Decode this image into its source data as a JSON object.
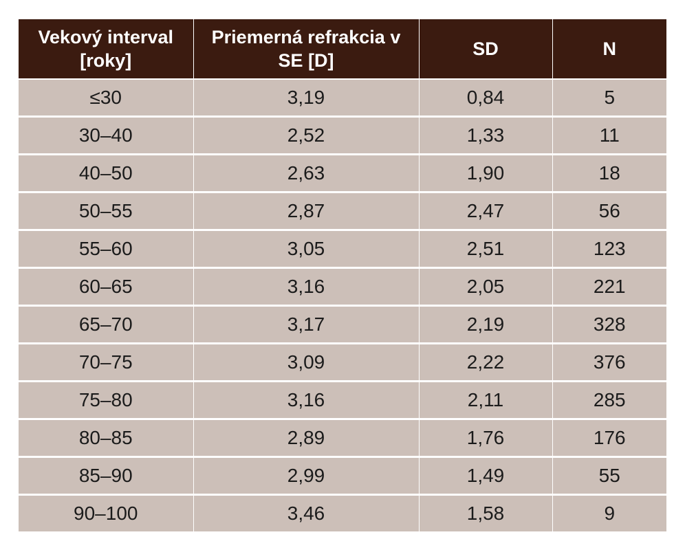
{
  "table": {
    "headers": [
      "Vekový interval [roky]",
      "Priemerná refrakcia v SE [D]",
      "SD",
      "N"
    ],
    "rows": [
      [
        "≤30",
        "3,19",
        "0,84",
        "5"
      ],
      [
        "30–40",
        "2,52",
        "1,33",
        "11"
      ],
      [
        "40–50",
        "2,63",
        "1,90",
        "18"
      ],
      [
        "50–55",
        "2,87",
        "2,47",
        "56"
      ],
      [
        "55–60",
        "3,05",
        "2,51",
        "123"
      ],
      [
        "60–65",
        "3,16",
        "2,05",
        "221"
      ],
      [
        "65–70",
        "3,17",
        "2,19",
        "328"
      ],
      [
        "70–75",
        "3,09",
        "2,22",
        "376"
      ],
      [
        "75–80",
        "3,16",
        "2,11",
        "285"
      ],
      [
        "80–85",
        "2,89",
        "1,76",
        "176"
      ],
      [
        "85–90",
        "2,99",
        "1,49",
        "55"
      ],
      [
        "90–100",
        "3,46",
        "1,58",
        "9"
      ]
    ]
  },
  "colors": {
    "header_background": "#3b1b10",
    "header_text": "#ffffff",
    "row_background": "#ccbfb8",
    "row_text": "#1b1b1b",
    "grid_lines": "#ffffff"
  }
}
